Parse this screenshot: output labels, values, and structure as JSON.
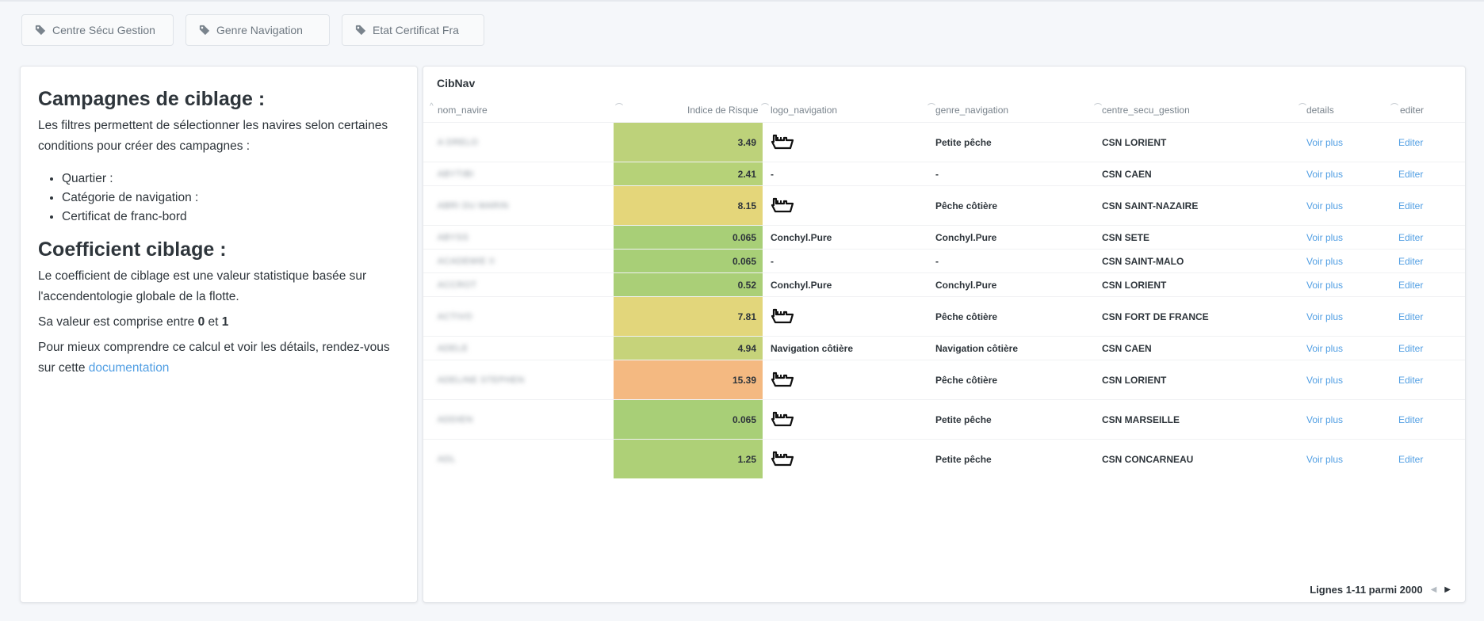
{
  "filters": [
    {
      "label": "Centre Sécu Gestion"
    },
    {
      "label": "Genre Navigation"
    },
    {
      "label": "Etat Certificat Fra"
    }
  ],
  "info": {
    "title1": "Campagnes de ciblage :",
    "intro": "Les filtres permettent de sélectionner les navires selon certaines conditions pour créer des campagnes :",
    "bullets": [
      "Quartier :",
      "Catégorie de navigation :",
      "Certificat de franc-bord"
    ],
    "title2": "Coefficient ciblage :",
    "coef_text": "Le coefficient de ciblage est une valeur statistique basée sur l'accendentologie globale de la flotte.",
    "range_prefix": "Sa valeur est comprise entre ",
    "range_min": "0",
    "range_mid": " et ",
    "range_max": "1",
    "doc_text": "Pour mieux comprendre ce calcul et voir les détails, rendez-vous sur cette ",
    "doc_link": "documentation"
  },
  "table": {
    "title": "CibNav",
    "columns": [
      "nom_navire",
      "Indice de Risque",
      "logo_navigation",
      "genre_navigation",
      "centre_secu_gestion",
      "details",
      "editer"
    ],
    "rows": [
      {
        "nom": "A DRELO",
        "risk": "3.49",
        "color": "#bdd27a",
        "logo": "ship",
        "genre": "Petite pêche",
        "centre": "CSN LORIENT",
        "details": "Voir plus",
        "edit": "Editer"
      },
      {
        "nom": "ABYTIBI",
        "risk": "2.41",
        "color": "#b6d278",
        "logo": "-",
        "genre": "-",
        "centre": "CSN CAEN",
        "details": "Voir plus",
        "edit": "Editer"
      },
      {
        "nom": "ABRI DU MARIN",
        "risk": "8.15",
        "color": "#e4d67a",
        "logo": "ship",
        "genre": "Pêche côtière",
        "centre": "CSN SAINT-NAZAIRE",
        "details": "Voir plus",
        "edit": "Editer"
      },
      {
        "nom": "ABYSS",
        "risk": "0.065",
        "color": "#a8cf77",
        "logo": "Conchyl.Pure",
        "genre": "Conchyl.Pure",
        "centre": "CSN SETE",
        "details": "Voir plus",
        "edit": "Editer"
      },
      {
        "nom": "ACADEMIE II",
        "risk": "0.065",
        "color": "#a8cf77",
        "logo": "-",
        "genre": "-",
        "centre": "CSN SAINT-MALO",
        "details": "Voir plus",
        "edit": "Editer"
      },
      {
        "nom": "ACCROT",
        "risk": "0.52",
        "color": "#aacf77",
        "logo": "Conchyl.Pure",
        "genre": "Conchyl.Pure",
        "centre": "CSN LORIENT",
        "details": "Voir plus",
        "edit": "Editer"
      },
      {
        "nom": "ACTIVO",
        "risk": "7.81",
        "color": "#e2d67b",
        "logo": "ship",
        "genre": "Pêche côtière",
        "centre": "CSN FORT DE FRANCE",
        "details": "Voir plus",
        "edit": "Editer"
      },
      {
        "nom": "ADELE",
        "risk": "4.94",
        "color": "#c6d37a",
        "logo": "Navigation côtière",
        "genre": "Navigation côtière",
        "centre": "CSN CAEN",
        "details": "Voir plus",
        "edit": "Editer"
      },
      {
        "nom": "ADELINE STEPHEN",
        "risk": "15.39",
        "color": "#f4b981",
        "logo": "ship",
        "genre": "Pêche côtière",
        "centre": "CSN LORIENT",
        "details": "Voir plus",
        "edit": "Editer"
      },
      {
        "nom": "ADDIEN",
        "risk": "0.065",
        "color": "#a8cf77",
        "logo": "ship",
        "genre": "Petite pêche",
        "centre": "CSN MARSEILLE",
        "details": "Voir plus",
        "edit": "Editer"
      },
      {
        "nom": "ADL",
        "risk": "1.25",
        "color": "#aed077",
        "logo": "ship",
        "genre": "Petite pêche",
        "centre": "CSN CONCARNEAU",
        "details": "Voir plus",
        "edit": "Editer"
      }
    ],
    "footer": "Lignes 1-11 parmi 2000"
  }
}
